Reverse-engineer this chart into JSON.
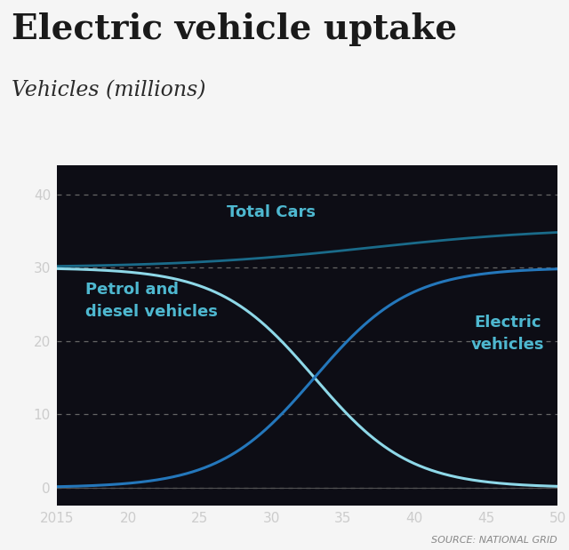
{
  "title": "Electric vehicle uptake",
  "subtitle": "Vehicles (millions)",
  "source": "SOURCE: NATIONAL GRID",
  "bg_color": "#0a0a0f",
  "title_color": "#2c3e50",
  "title_bg": "#f0f0f0",
  "plot_bg": "#0d0d12",
  "grid_color": "#666666",
  "tick_color": "#cccccc",
  "x_start": 2015,
  "x_end": 2050,
  "x_ticks": [
    2015,
    2020,
    2025,
    2030,
    2035,
    2040,
    2045,
    2050
  ],
  "x_tick_labels": [
    "2015",
    "20",
    "25",
    "30",
    "35",
    "40",
    "45",
    "50"
  ],
  "y_ticks": [
    0,
    10,
    20,
    30,
    40
  ],
  "ylim": [
    -2.5,
    44
  ],
  "total_cars_color": "#1a6b8a",
  "petrol_color": "#8ed8e8",
  "ev_color": "#2477bb",
  "label_color": "#4eb8d0",
  "total_cars_label": "Total Cars",
  "petrol_label": "Petrol and\ndiesel vehicles",
  "ev_label": "Electric\nvehicles",
  "source_color": "#888888"
}
